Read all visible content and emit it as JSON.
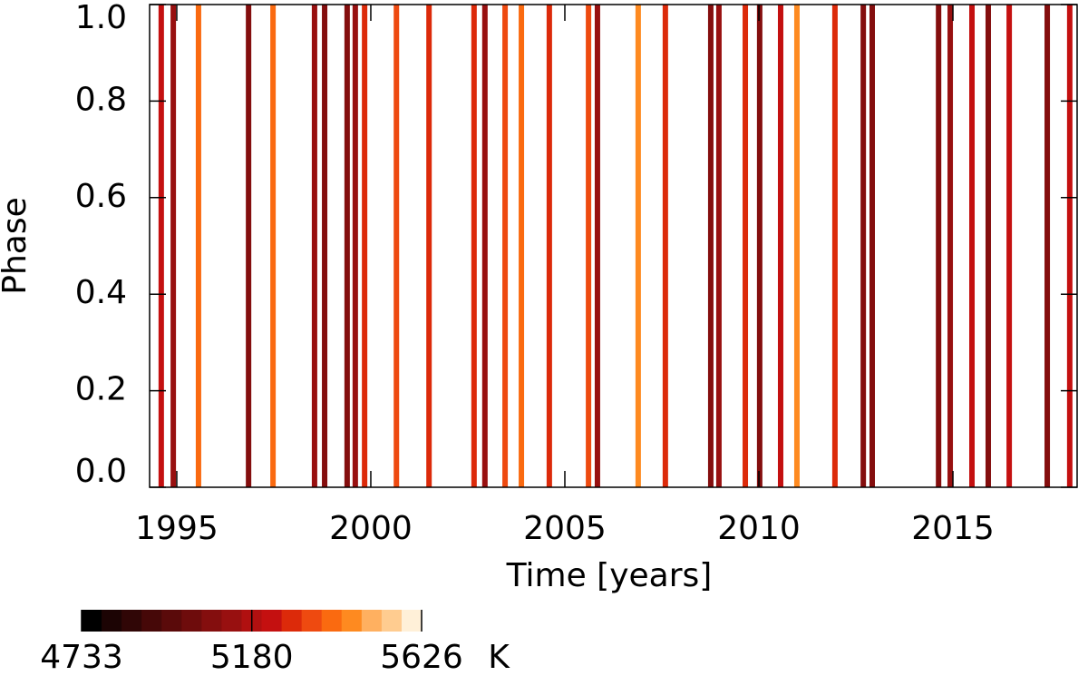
{
  "chart_data": {
    "type": "stripes",
    "xlabel": "Time [years]",
    "ylabel": "Phase",
    "x": [
      1994.6,
      1994.91,
      1995.56,
      1996.85,
      1997.48,
      1998.55,
      1998.81,
      1999.39,
      1999.6,
      1999.84,
      2000.66,
      2001.5,
      2002.66,
      2002.94,
      2003.46,
      2003.88,
      2004.6,
      2005.61,
      2005.84,
      2006.89,
      2007.59,
      2008.76,
      2008.97,
      2009.65,
      2010.02,
      2010.56,
      2010.98,
      2011.96,
      2012.69,
      2012.92,
      2014.63,
      2014.93,
      2015.49,
      2015.91,
      2016.45,
      2017.43,
      2018.01
    ],
    "values": [
      5250,
      5150,
      5400,
      5050,
      5400,
      5150,
      5050,
      5050,
      5150,
      5300,
      5350,
      5300,
      5300,
      5150,
      5350,
      5400,
      5300,
      5350,
      5150,
      5450,
      5300,
      5050,
      5150,
      5300,
      5050,
      5250,
      5450,
      5300,
      5100,
      5050,
      5050,
      5150,
      5250,
      5050,
      5250,
      5050,
      5250
    ],
    "xlim": [
      1994.3,
      2018.2
    ],
    "xticks": [
      1995,
      2000,
      2005,
      2010,
      2015
    ],
    "ylim": [
      0,
      1
    ],
    "yticks": [
      {
        "value": 0,
        "label": "0.0"
      },
      {
        "value": 0.2,
        "label": "0.2"
      },
      {
        "value": 0.4,
        "label": "0.4"
      },
      {
        "value": 0.6,
        "label": "0.6"
      },
      {
        "value": 0.8,
        "label": "0.8"
      },
      {
        "value": 1,
        "label": "1.0"
      }
    ],
    "colormap": [
      "#000000",
      "#1c0404",
      "#300606",
      "#460808",
      "#5a0a0a",
      "#6e0c0c",
      "#840e0e",
      "#981010",
      "#b01010",
      "#c41010",
      "#dc2a0a",
      "#ee4a10",
      "#fa6a10",
      "#fe8a20",
      "#ffb060",
      "#ffcc90",
      "#fff0d8"
    ],
    "clim": [
      4733,
      5626
    ],
    "cticks": [
      4733,
      5180,
      5626
    ],
    "cunit": "K"
  }
}
